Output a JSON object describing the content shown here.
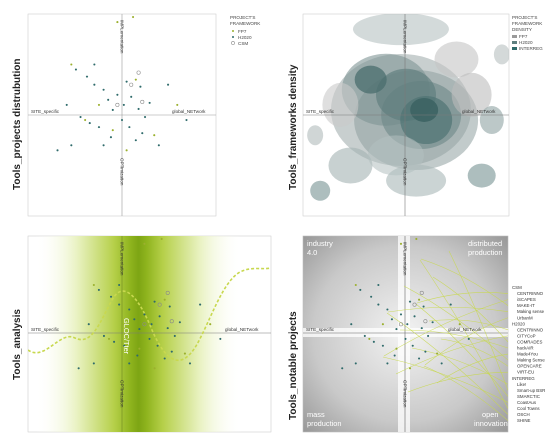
{
  "colors": {
    "fp7": "#9bb02e",
    "h2020": "#2f6b6b",
    "csm": "#8a8a8a",
    "interreg": "#2a7a7a",
    "density": "#3f6e6e",
    "analysis_green": "#8fb41e",
    "curve": "#c8d84f"
  },
  "axes": {
    "top": "IMPLementation",
    "bottom": "OPTimization",
    "left": "SITE_specific",
    "right": "global_NETwork"
  },
  "panels": {
    "distribution": {
      "title": "Tools_projects distrubution"
    },
    "density": {
      "title": "Tools_frameworks density"
    },
    "analysis": {
      "title": "Tools_analysis",
      "center_label": "GLOC/Tter"
    },
    "notable": {
      "title": "Tools_notable projects"
    }
  },
  "legend_distribution": {
    "title1": "PROJECT'S",
    "title2": "FRAMEWORK",
    "items": [
      {
        "label": "FP7",
        "color": "#9bb02e"
      },
      {
        "label": "H2020",
        "color": "#2f6b6b"
      },
      {
        "label": "CSM",
        "color": "#8a8a8a"
      }
    ]
  },
  "legend_density": {
    "title1": "PROJECT'S",
    "title2": "FRAMEWORK",
    "title3": "DENSITY",
    "items": [
      {
        "label": "FP7",
        "color": "#9a9a9a"
      },
      {
        "label": "H2020",
        "color": "#5f8080"
      },
      {
        "label": "INTERREG",
        "color": "#2f6b6b"
      }
    ]
  },
  "quadrants": {
    "top_left_1": "industry",
    "top_left_2": "4.0",
    "top_right_1": "distributed",
    "top_right_2": "production",
    "bottom_left_1": "mass",
    "bottom_left_2": "production",
    "bottom_right_1": "open",
    "bottom_right_2": "innovation"
  },
  "project_list": [
    {
      "label": "CSM",
      "header": true
    },
    {
      "label": "CENTRINNO",
      "header": false
    },
    {
      "label": "iSCAPES",
      "header": false
    },
    {
      "label": "MAKE-IT",
      "header": false
    },
    {
      "label": "Making sense",
      "header": false
    },
    {
      "label": "UrbanM",
      "header": false
    },
    {
      "label": "H2020",
      "header": true
    },
    {
      "label": "CENTRINNO",
      "header": false
    },
    {
      "label": "CITYCoP",
      "header": false
    },
    {
      "label": "COMRADES",
      "header": false
    },
    {
      "label": "hackAIR",
      "header": false
    },
    {
      "label": "Made4You",
      "header": false
    },
    {
      "label": "Making Sense",
      "header": false
    },
    {
      "label": "OPENCARE",
      "header": false
    },
    {
      "label": "VIRT-EU",
      "header": false
    },
    {
      "label": "INTERREG",
      "header": true
    },
    {
      "label": "Like!",
      "header": false
    },
    {
      "label": "Smart-up BSR",
      "header": false
    },
    {
      "label": "SMARCTIC",
      "header": false
    },
    {
      "label": "CoastAus",
      "header": false
    },
    {
      "label": "Cool Towns",
      "header": false
    },
    {
      "label": "OSCH",
      "header": false
    },
    {
      "label": "SHINE",
      "header": false
    }
  ],
  "chart_data": [
    {
      "type": "scatter",
      "title": "Tools_projects distrubution",
      "xlabel": "SITE_specific / global_NETwork",
      "ylabel": "OPTimization / IMPLementation",
      "xlim": [
        -1,
        1
      ],
      "ylim": [
        -1,
        1
      ],
      "legend": "top-right",
      "series": [
        {
          "name": "FP7",
          "points": [
            [
              -0.05,
              0.92
            ],
            [
              0.12,
              0.97
            ],
            [
              -0.55,
              0.5
            ],
            [
              0.15,
              0.35
            ],
            [
              -0.25,
              0.1
            ],
            [
              0.35,
              -0.2
            ],
            [
              -0.4,
              -0.05
            ],
            [
              0.05,
              -0.35
            ],
            [
              0.6,
              0.1
            ],
            [
              -0.1,
              -0.15
            ]
          ]
        },
        {
          "name": "H2020",
          "points": [
            [
              -0.5,
              0.45
            ],
            [
              -0.38,
              0.38
            ],
            [
              -0.3,
              0.3
            ],
            [
              -0.2,
              0.25
            ],
            [
              -0.15,
              0.15
            ],
            [
              -0.1,
              0.05
            ],
            [
              -0.05,
              0.2
            ],
            [
              0.02,
              0.1
            ],
            [
              0.1,
              0.18
            ],
            [
              0.18,
              0.06
            ],
            [
              0.25,
              -0.02
            ],
            [
              0.3,
              0.12
            ],
            [
              -0.6,
              0.1
            ],
            [
              -0.45,
              -0.02
            ],
            [
              -0.35,
              -0.08
            ],
            [
              -0.25,
              -0.12
            ],
            [
              -0.2,
              -0.3
            ],
            [
              -0.12,
              -0.22
            ],
            [
              0.0,
              -0.05
            ],
            [
              0.08,
              -0.12
            ],
            [
              0.15,
              -0.25
            ],
            [
              0.22,
              -0.18
            ],
            [
              0.4,
              -0.3
            ],
            [
              -0.7,
              -0.35
            ],
            [
              -0.55,
              -0.3
            ],
            [
              0.05,
              0.33
            ],
            [
              0.2,
              0.28
            ],
            [
              -0.3,
              0.5
            ],
            [
              0.5,
              0.3
            ],
            [
              0.7,
              -0.05
            ]
          ]
        },
        {
          "name": "CSM",
          "points": [
            [
              0.18,
              0.42
            ],
            [
              0.1,
              0.3
            ],
            [
              -0.05,
              0.1
            ],
            [
              0.22,
              0.13
            ]
          ]
        }
      ]
    },
    {
      "type": "heatmap",
      "title": "Tools_frameworks density",
      "xlabel": "SITE_specific / global_NETwork",
      "ylabel": "OPTimization / IMPLementation",
      "xlim": [
        -1,
        1
      ],
      "ylim": [
        -1,
        1
      ],
      "legend": "top-right",
      "series": [
        {
          "name": "FP7",
          "values": []
        },
        {
          "name": "H2020",
          "values": []
        },
        {
          "name": "INTERREG",
          "values": []
        }
      ]
    },
    {
      "type": "scatter",
      "title": "Tools_analysis",
      "xlabel": "SITE_specific / global_NETwork",
      "ylabel": "OPTimization / IMPLementation",
      "xlim": [
        -1,
        1
      ],
      "ylim": [
        -1,
        1
      ],
      "series": []
    },
    {
      "type": "scatter",
      "title": "Tools_notable projects",
      "xlabel": "SITE_specific / global_NETwork",
      "ylabel": "OPTimization / IMPLementation",
      "xlim": [
        -1,
        1
      ],
      "ylim": [
        -1,
        1
      ],
      "series": []
    }
  ]
}
